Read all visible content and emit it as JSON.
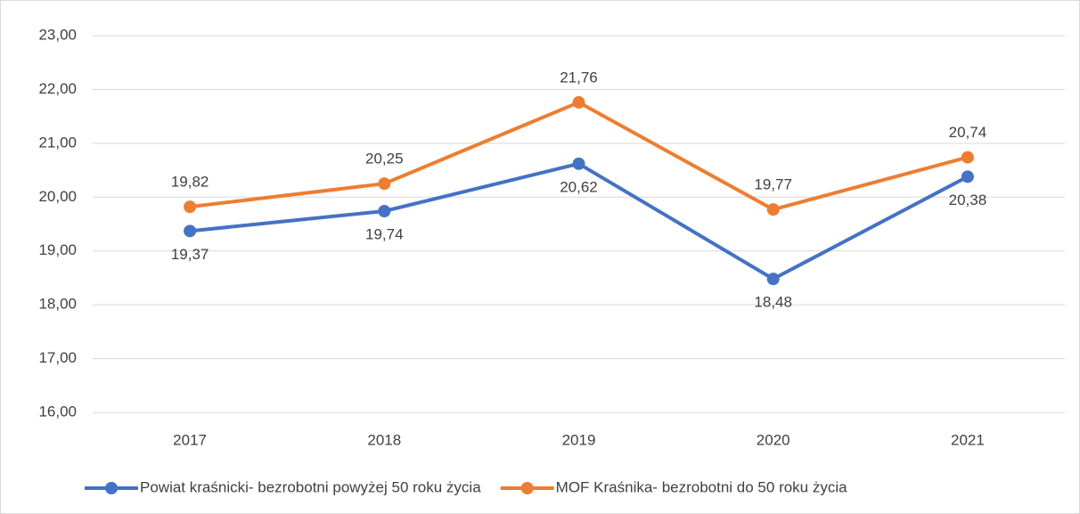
{
  "chart_data": {
    "type": "line",
    "categories": [
      "2017",
      "2018",
      "2019",
      "2020",
      "2021"
    ],
    "series": [
      {
        "name": "Powiat kraśnicki- bezrobotni powyżej 50 roku życia",
        "color": "#4472c4",
        "values": [
          19.37,
          19.74,
          20.62,
          18.48,
          20.38
        ],
        "value_labels": [
          "19,37",
          "19,74",
          "20,62",
          "18,48",
          "20,38"
        ]
      },
      {
        "name": "MOF Kraśnika- bezrobotni do 50 roku życia",
        "color": "#ed7d31",
        "values": [
          19.82,
          20.25,
          21.76,
          19.77,
          20.74
        ],
        "value_labels": [
          "19,82",
          "20,25",
          "21,76",
          "19,77",
          "20,74"
        ]
      }
    ],
    "ylim": [
      16,
      23
    ],
    "yticks": [
      {
        "value": 16,
        "label": "16,00"
      },
      {
        "value": 17,
        "label": "17,00"
      },
      {
        "value": 18,
        "label": "18,00"
      },
      {
        "value": 19,
        "label": "19,00"
      },
      {
        "value": 20,
        "label": "20,00"
      },
      {
        "value": 21,
        "label": "21,00"
      },
      {
        "value": 22,
        "label": "22,00"
      },
      {
        "value": 23,
        "label": "23,00"
      }
    ],
    "grid": true,
    "legend": "bottom"
  }
}
